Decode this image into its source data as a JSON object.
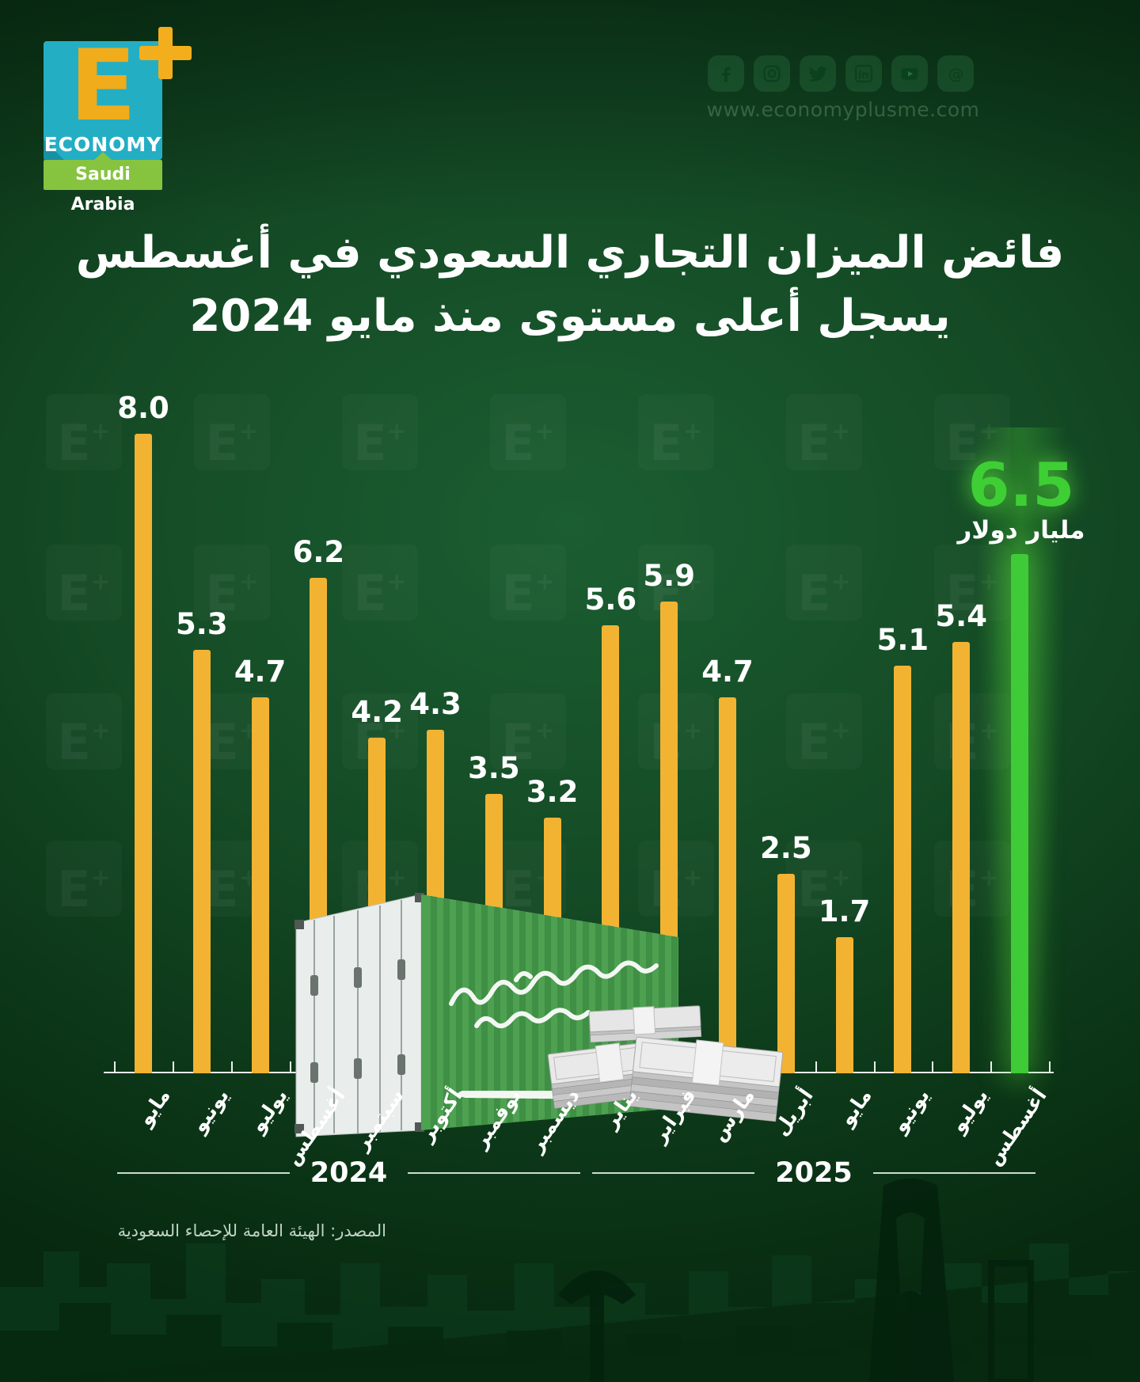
{
  "logo": {
    "letter": "E",
    "plus": "+",
    "wordmark": "ECONOMY",
    "region": "Saudi Arabia"
  },
  "header": {
    "website": "www.economyplusme.com",
    "social_icons": [
      "facebook-icon",
      "instagram-icon",
      "twitter-icon",
      "linkedin-icon",
      "youtube-icon",
      "threads-icon"
    ]
  },
  "title": {
    "line1": "فائض الميزان التجاري السعودي في أغسطس",
    "line2": "يسجل أعلى مستوى منذ مايو 2024"
  },
  "chart_data": {
    "type": "bar",
    "title": "فائض الميزان التجاري السعودي (مليار دولار)",
    "categories": [
      "مايو 2024",
      "يونيو 2024",
      "يوليو 2024",
      "أغسطس 2024",
      "سبتمبر 2024",
      "أكتوبر 2024",
      "نوفمبر 2024",
      "ديسمبر 2024",
      "يناير 2025",
      "فبراير 2025",
      "مارس 2025",
      "أبريل 2025",
      "مايو 2025",
      "يونيو 2025",
      "يوليو 2025",
      "أغسطس 2025"
    ],
    "months": [
      "مايو",
      "يونيو",
      "يوليو",
      "أغسطس",
      "سبتمبر",
      "أكتوبر",
      "نوفمبر",
      "ديسمبر",
      "يناير",
      "فبراير",
      "مارس",
      "أبريل",
      "مايو",
      "يونيو",
      "يوليو",
      "أغسطس"
    ],
    "values": [
      8.0,
      5.3,
      4.7,
      6.2,
      4.2,
      4.3,
      3.5,
      3.2,
      5.6,
      5.9,
      4.7,
      2.5,
      1.7,
      5.1,
      5.4,
      6.5
    ],
    "value_labels": [
      "8.0",
      "5.3",
      "4.7",
      "6.2",
      "4.2",
      "4.3",
      "3.5",
      "3.2",
      "5.6",
      "5.9",
      "4.7",
      "2.5",
      "1.7",
      "5.1",
      "5.4",
      "6.5"
    ],
    "highlight_index": 15,
    "highlight": {
      "value": "6.5",
      "unit": "مليار دولار"
    },
    "bar_color": "#F2B332",
    "highlight_color": "#3ECB37",
    "ylim": [
      0,
      8.5
    ],
    "grid": false,
    "legend": "none",
    "year_groups": [
      {
        "label": "2024",
        "from": "مايو",
        "to": "ديسمبر"
      },
      {
        "label": "2025",
        "from": "يناير",
        "to": "أغسطس"
      }
    ]
  },
  "source": "المصدر: الهيئة العامة للإحصاء السعودية",
  "decor": {
    "watermark": "E+",
    "container_flag_text": "لا إله إلا الله محمد رسول الله"
  }
}
